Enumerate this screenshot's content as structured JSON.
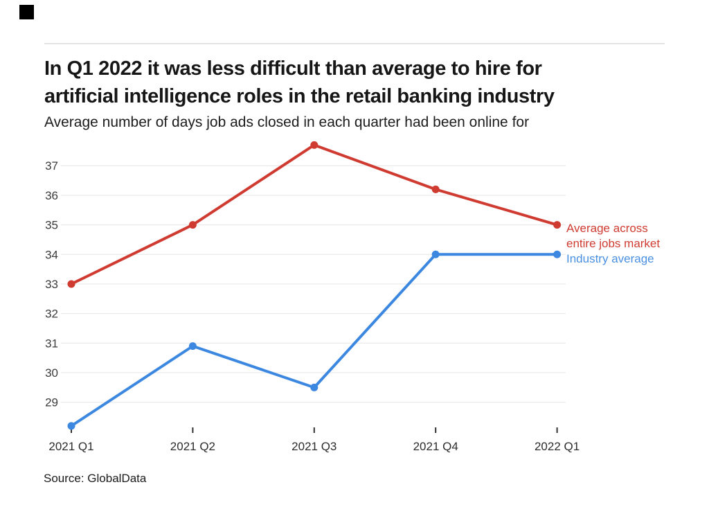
{
  "branding": {
    "logo_square_color": "#000000"
  },
  "header": {
    "title_lines": [
      "In Q1 2022 it was less difficult than average to hire for",
      "artificial intelligence roles in the retail banking industry"
    ],
    "subtitle": "Average number of days job ads closed in each quarter had been online for"
  },
  "footer": {
    "source": "Source: GlobalData"
  },
  "chart_data": {
    "type": "line",
    "title": "In Q1 2022 it was less difficult than average to hire for artificial intelligence roles in the retail banking industry",
    "subtitle": "Average number of days job ads closed in each quarter had been online for",
    "categories": [
      "2021 Q1",
      "2021 Q2",
      "2021 Q3",
      "2021 Q4",
      "2022 Q1"
    ],
    "series": [
      {
        "name": "Average across entire jobs market",
        "label_lines": [
          "Average across",
          "entire jobs market"
        ],
        "color": "#cf3b30",
        "legend_text_color": "#cf3b30",
        "values": [
          33,
          35,
          37.7,
          36.2,
          35
        ]
      },
      {
        "name": "Industry average",
        "label_lines": [
          "Industry average"
        ],
        "color": "#3c88e0",
        "legend_text_color": "#4a90e2",
        "values": [
          28.2,
          30.9,
          29.5,
          34,
          34
        ]
      }
    ],
    "xlabel": "",
    "ylabel": "",
    "y_ticks": [
      29,
      30,
      31,
      32,
      33,
      34,
      35,
      36,
      37
    ],
    "ylim": [
      28.0,
      38.2
    ],
    "grid": "horizontal-only",
    "legend_position": "right of last data points",
    "source": "Source: GlobalData"
  }
}
